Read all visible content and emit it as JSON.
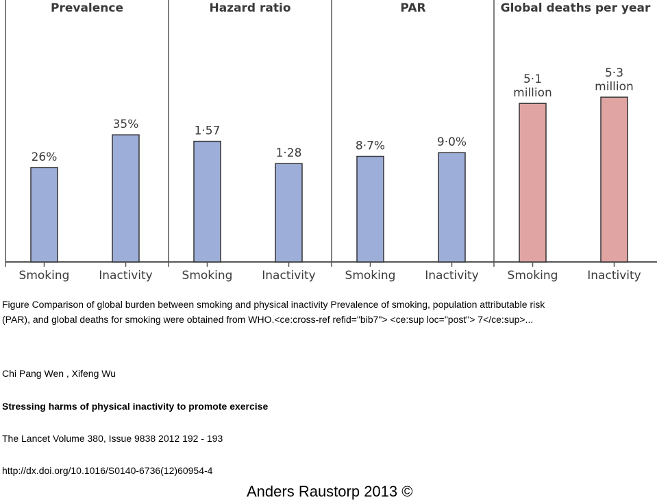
{
  "chart_data": {
    "type": "bar",
    "title": "Comparison of global burden between smoking and physical inactivity",
    "panels": [
      {
        "title": "Prevalence",
        "categories": [
          "Smoking",
          "Inactivity"
        ],
        "values": [
          26,
          35
        ],
        "labels": [
          "26%",
          "35%"
        ],
        "unit": "%",
        "color": "#9daed8"
      },
      {
        "title": "Hazard ratio",
        "categories": [
          "Smoking",
          "Inactivity"
        ],
        "values": [
          1.57,
          1.28
        ],
        "labels": [
          "1·57",
          "1·28"
        ],
        "unit": "",
        "color": "#9daed8"
      },
      {
        "title": "PAR",
        "categories": [
          "Smoking",
          "Inactivity"
        ],
        "values": [
          8.7,
          9.0
        ],
        "labels": [
          "8·7%",
          "9·0%"
        ],
        "unit": "%",
        "color": "#9daed8"
      },
      {
        "title": "Global deaths per year",
        "categories": [
          "Smoking",
          "Inactivity"
        ],
        "values": [
          5.1,
          5.3
        ],
        "labels": [
          "5·1\nmillion",
          "5·3\nmillion"
        ],
        "unit": "million",
        "color": "#e0a4a3"
      }
    ]
  },
  "caption": {
    "line1": "Figure   Comparison of global burden between smoking and physical inactivity  Prevalence of smoking, population attributable risk",
    "line2": "(PAR), and global deaths for smoking were obtained from WHO.<ce:cross-ref refid=\"bib7\"> <ce:sup loc=\"post\"> 7</ce:sup>..."
  },
  "authors": "Chi Pang  Wen , Xifeng  Wu",
  "article_title": "Stressing harms of physical inactivity to promote exercise",
  "journal": "The Lancet Volume 380, Issue 9838 2012 192 - 193",
  "doi": "http://dx.doi.org/10.1016/S0140-6736(12)60954-4",
  "copyright": "Anders Raustorp 2013 ©"
}
